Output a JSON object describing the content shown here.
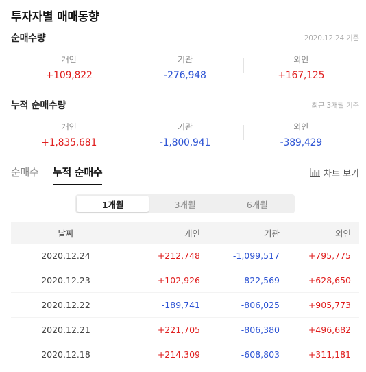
{
  "title": "투자자별 매매동향",
  "net_purchase": {
    "label": "순매수량",
    "note": "2020.12.24 기준",
    "items": [
      {
        "name": "개인",
        "value": "+109,822"
      },
      {
        "name": "기관",
        "value": "-276,948"
      },
      {
        "name": "외인",
        "value": "+167,125"
      }
    ]
  },
  "cumulative": {
    "label": "누적 순매수량",
    "note": "최근 3개월 기준",
    "items": [
      {
        "name": "개인",
        "value": "+1,835,681"
      },
      {
        "name": "기관",
        "value": "-1,800,941"
      },
      {
        "name": "외인",
        "value": "-389,429"
      }
    ]
  },
  "tabs": {
    "items": [
      "순매수",
      "누적 순매수"
    ],
    "active": 1,
    "chart_view_label": "차트 보기"
  },
  "periods": {
    "items": [
      "1개월",
      "3개월",
      "6개월"
    ],
    "active": 0
  },
  "table": {
    "headers": [
      "날짜",
      "개인",
      "기관",
      "외인"
    ],
    "rows": [
      [
        "2020.12.24",
        "+212,748",
        "-1,099,517",
        "+795,775"
      ],
      [
        "2020.12.23",
        "+102,926",
        "-822,569",
        "+628,650"
      ],
      [
        "2020.12.22",
        "-189,741",
        "-806,025",
        "+905,773"
      ],
      [
        "2020.12.21",
        "+221,705",
        "-806,380",
        "+496,682"
      ],
      [
        "2020.12.18",
        "+214,309",
        "-608,803",
        "+311,181"
      ]
    ]
  },
  "colors": {
    "positive": "#e02020",
    "negative": "#2f55d4"
  }
}
